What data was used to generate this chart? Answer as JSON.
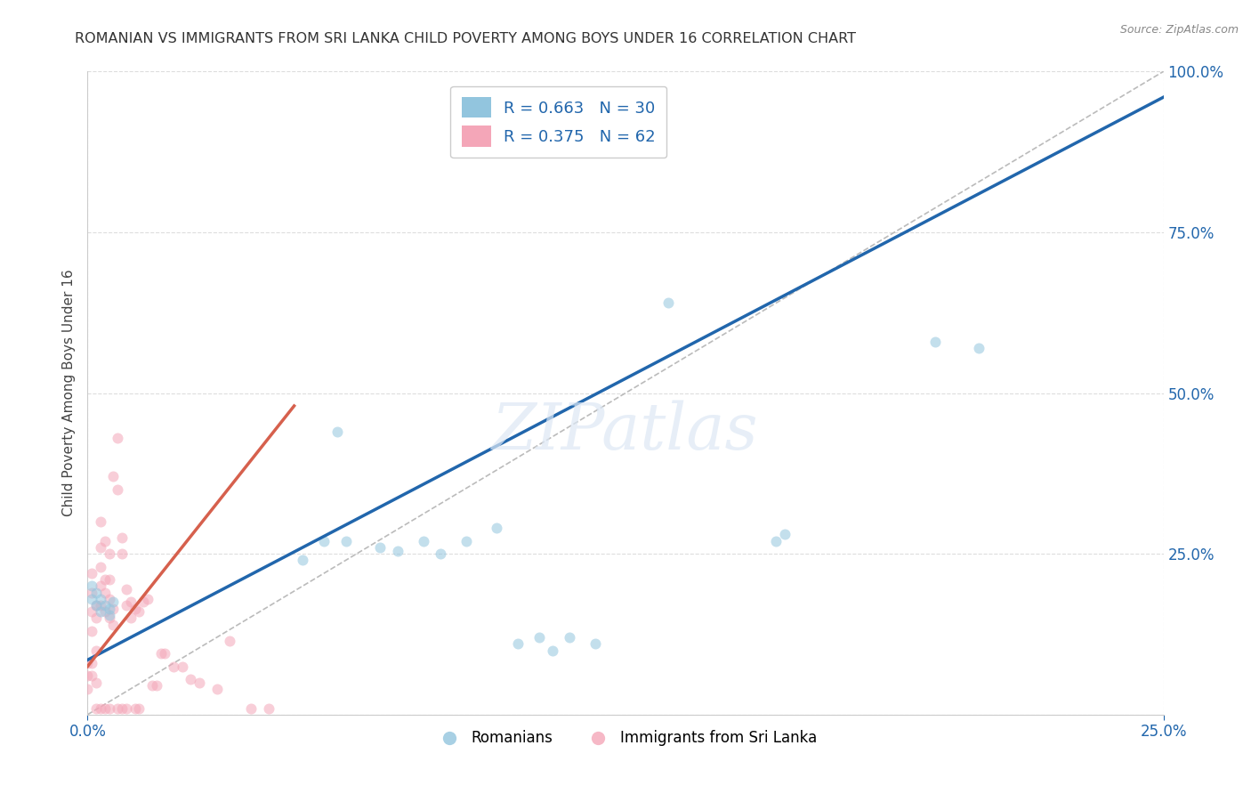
{
  "title": "ROMANIAN VS IMMIGRANTS FROM SRI LANKA CHILD POVERTY AMONG BOYS UNDER 16 CORRELATION CHART",
  "source": "Source: ZipAtlas.com",
  "ylabel_text": "Child Poverty Among Boys Under 16",
  "xlim": [
    0.0,
    0.25
  ],
  "ylim": [
    0.0,
    1.0
  ],
  "xticks": [
    0.0,
    0.25
  ],
  "yticks": [
    0.0,
    0.25,
    0.5,
    0.75,
    1.0
  ],
  "xtick_labels": [
    "0.0%",
    "25.0%"
  ],
  "ytick_labels": [
    "",
    "25.0%",
    "50.0%",
    "75.0%",
    "100.0%"
  ],
  "blue_color": "#92c5de",
  "pink_color": "#f4a6b8",
  "blue_line_color": "#2166ac",
  "pink_line_color": "#d6604d",
  "diagonal_color": "#bbbbbb",
  "watermark": "ZIPatlas",
  "legend_r_blue": "R = 0.663",
  "legend_n_blue": "N = 30",
  "legend_r_pink": "R = 0.375",
  "legend_n_pink": "N = 62",
  "legend_label_blue": "Romanians",
  "legend_label_pink": "Immigrants from Sri Lanka",
  "blue_scatter_x": [
    0.001,
    0.001,
    0.002,
    0.002,
    0.003,
    0.003,
    0.004,
    0.005,
    0.005,
    0.006,
    0.05,
    0.055,
    0.058,
    0.06,
    0.068,
    0.072,
    0.078,
    0.082,
    0.088,
    0.095,
    0.1,
    0.105,
    0.108,
    0.112,
    0.118,
    0.135,
    0.16,
    0.162,
    0.197,
    0.207
  ],
  "blue_scatter_y": [
    0.18,
    0.2,
    0.17,
    0.19,
    0.16,
    0.18,
    0.17,
    0.155,
    0.165,
    0.175,
    0.24,
    0.27,
    0.44,
    0.27,
    0.26,
    0.255,
    0.27,
    0.25,
    0.27,
    0.29,
    0.11,
    0.12,
    0.1,
    0.12,
    0.11,
    0.64,
    0.27,
    0.28,
    0.58,
    0.57
  ],
  "pink_scatter_x": [
    0.0,
    0.0,
    0.0,
    0.001,
    0.001,
    0.001,
    0.001,
    0.001,
    0.001,
    0.002,
    0.002,
    0.002,
    0.002,
    0.002,
    0.003,
    0.003,
    0.003,
    0.003,
    0.003,
    0.003,
    0.004,
    0.004,
    0.004,
    0.004,
    0.004,
    0.005,
    0.005,
    0.005,
    0.005,
    0.005,
    0.006,
    0.006,
    0.006,
    0.007,
    0.007,
    0.007,
    0.008,
    0.008,
    0.008,
    0.009,
    0.009,
    0.009,
    0.01,
    0.01,
    0.011,
    0.011,
    0.012,
    0.012,
    0.013,
    0.014,
    0.015,
    0.016,
    0.017,
    0.018,
    0.02,
    0.022,
    0.024,
    0.026,
    0.03,
    0.033,
    0.038,
    0.042
  ],
  "pink_scatter_y": [
    0.04,
    0.06,
    0.08,
    0.13,
    0.16,
    0.19,
    0.22,
    0.06,
    0.08,
    0.05,
    0.1,
    0.15,
    0.17,
    0.01,
    0.17,
    0.2,
    0.23,
    0.26,
    0.3,
    0.01,
    0.16,
    0.19,
    0.21,
    0.27,
    0.01,
    0.15,
    0.18,
    0.21,
    0.25,
    0.01,
    0.14,
    0.165,
    0.37,
    0.35,
    0.43,
    0.01,
    0.25,
    0.275,
    0.01,
    0.17,
    0.195,
    0.01,
    0.15,
    0.175,
    0.165,
    0.01,
    0.16,
    0.01,
    0.175,
    0.18,
    0.045,
    0.045,
    0.095,
    0.095,
    0.075,
    0.075,
    0.055,
    0.05,
    0.04,
    0.115,
    0.01,
    0.01
  ],
  "blue_line_x0": 0.0,
  "blue_line_y0": 0.085,
  "blue_line_x1": 0.25,
  "blue_line_y1": 0.96,
  "pink_line_x0": 0.0,
  "pink_line_y0": 0.075,
  "pink_line_x1": 0.048,
  "pink_line_y1": 0.48,
  "marker_size": 75,
  "marker_alpha": 0.55,
  "title_fontsize": 11.5,
  "axis_label_fontsize": 11,
  "tick_fontsize": 12,
  "tick_color": "#2166ac",
  "title_color": "#333333",
  "background_color": "#ffffff",
  "grid_color": "#dddddd",
  "grid_linestyle": "--"
}
